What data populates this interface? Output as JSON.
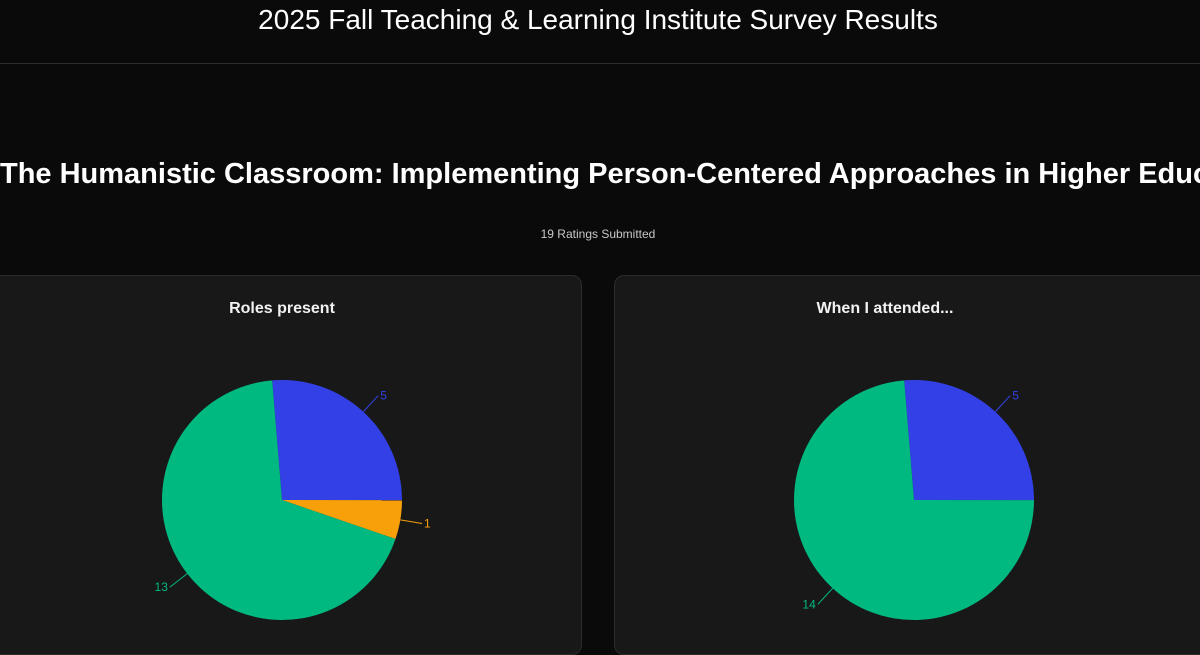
{
  "header": {
    "title": "2025 Fall Teaching & Learning Institute Survey Results"
  },
  "session": {
    "title": "The Humanistic Classroom: Implementing Person-Centered Approaches in Higher Education",
    "ratings": "19 Ratings Submitted"
  },
  "colors": {
    "blue": "#3340e6",
    "orange": "#f7a00a",
    "green": "#00b981",
    "background": "#0a0a0a",
    "card": "#181818"
  },
  "chart_data": [
    {
      "type": "pie",
      "title": "Roles present",
      "slices": [
        {
          "value": 5,
          "color": "#3340e6"
        },
        {
          "value": 1,
          "color": "#f7a00a"
        },
        {
          "value": 13,
          "color": "#00b981"
        }
      ]
    },
    {
      "type": "pie",
      "title": "When I attended...",
      "slices": [
        {
          "value": 5,
          "color": "#3340e6"
        },
        {
          "value": 14,
          "color": "#00b981"
        }
      ]
    }
  ]
}
